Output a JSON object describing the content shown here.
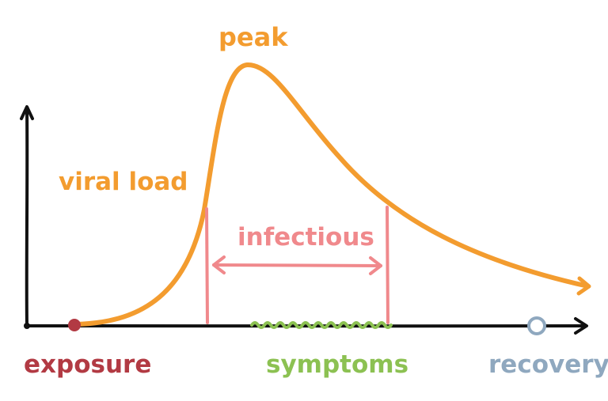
{
  "labels": {
    "peak": "peak",
    "viral_load": "viral load",
    "infectious": "infectious",
    "exposure": "exposure",
    "symptoms": "symptoms",
    "recovery": "recovery"
  },
  "colors": {
    "axis": "#111111",
    "curve": "#f39c2f",
    "infectious": "#f0898c",
    "exposure": "#b23a43",
    "symptoms": "#8cc152",
    "recovery": "#8fa8bf"
  }
}
